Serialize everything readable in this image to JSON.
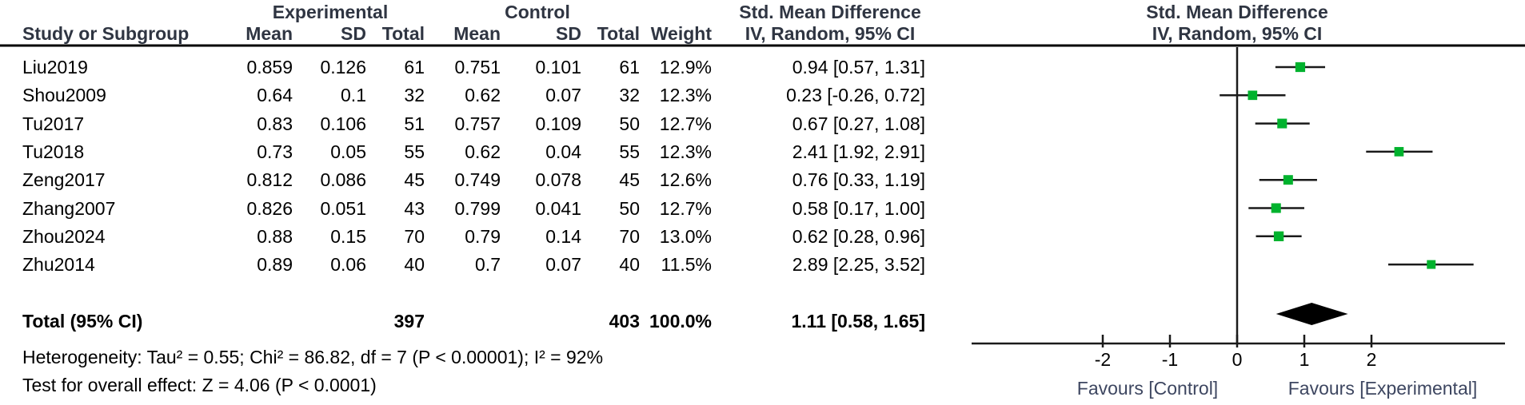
{
  "colors": {
    "marker_green": "#00b22d",
    "line_black": "#1a1a1a",
    "header_text": "#2f3542",
    "favours_text": "#3d4660",
    "background": "#ffffff"
  },
  "header": {
    "study": "Study or Subgroup",
    "group_experimental": "Experimental",
    "group_control": "Control",
    "mean": "Mean",
    "sd": "SD",
    "total": "Total",
    "weight": "Weight",
    "effect_title": "Std. Mean Difference",
    "effect_method": "IV, Random, 95% CI",
    "plot_title": "Std. Mean Difference",
    "plot_method": "IV, Random, 95% CI"
  },
  "chart_data": {
    "type": "forest",
    "effect_measure": "Std. Mean Difference",
    "model": "IV, Random, 95% CI",
    "studies": [
      {
        "name": "Liu2019",
        "exp_mean": "0.859",
        "exp_sd": "0.126",
        "exp_total": "61",
        "ctrl_mean": "0.751",
        "ctrl_sd": "0.101",
        "ctrl_total": "61",
        "weight": "12.9%",
        "weight_pct": 12.9,
        "smd": 0.94,
        "ci_low": 0.57,
        "ci_high": 1.31,
        "ci_label": "0.94 [0.57, 1.31]"
      },
      {
        "name": "Shou2009",
        "exp_mean": "0.64",
        "exp_sd": "0.1",
        "exp_total": "32",
        "ctrl_mean": "0.62",
        "ctrl_sd": "0.07",
        "ctrl_total": "32",
        "weight": "12.3%",
        "weight_pct": 12.3,
        "smd": 0.23,
        "ci_low": -0.26,
        "ci_high": 0.72,
        "ci_label": "0.23 [-0.26, 0.72]"
      },
      {
        "name": "Tu2017",
        "exp_mean": "0.83",
        "exp_sd": "0.106",
        "exp_total": "51",
        "ctrl_mean": "0.757",
        "ctrl_sd": "0.109",
        "ctrl_total": "50",
        "weight": "12.7%",
        "weight_pct": 12.7,
        "smd": 0.67,
        "ci_low": 0.27,
        "ci_high": 1.08,
        "ci_label": "0.67 [0.27, 1.08]"
      },
      {
        "name": "Tu2018",
        "exp_mean": "0.73",
        "exp_sd": "0.05",
        "exp_total": "55",
        "ctrl_mean": "0.62",
        "ctrl_sd": "0.04",
        "ctrl_total": "55",
        "weight": "12.3%",
        "weight_pct": 12.3,
        "smd": 2.41,
        "ci_low": 1.92,
        "ci_high": 2.91,
        "ci_label": "2.41 [1.92, 2.91]"
      },
      {
        "name": "Zeng2017",
        "exp_mean": "0.812",
        "exp_sd": "0.086",
        "exp_total": "45",
        "ctrl_mean": "0.749",
        "ctrl_sd": "0.078",
        "ctrl_total": "45",
        "weight": "12.6%",
        "weight_pct": 12.6,
        "smd": 0.76,
        "ci_low": 0.33,
        "ci_high": 1.19,
        "ci_label": "0.76 [0.33, 1.19]"
      },
      {
        "name": "Zhang2007",
        "exp_mean": "0.826",
        "exp_sd": "0.051",
        "exp_total": "43",
        "ctrl_mean": "0.799",
        "ctrl_sd": "0.041",
        "ctrl_total": "50",
        "weight": "12.7%",
        "weight_pct": 12.7,
        "smd": 0.58,
        "ci_low": 0.17,
        "ci_high": 1.0,
        "ci_label": "0.58 [0.17, 1.00]"
      },
      {
        "name": "Zhou2024",
        "exp_mean": "0.88",
        "exp_sd": "0.15",
        "exp_total": "70",
        "ctrl_mean": "0.79",
        "ctrl_sd": "0.14",
        "ctrl_total": "70",
        "weight": "13.0%",
        "weight_pct": 13.0,
        "smd": 0.62,
        "ci_low": 0.28,
        "ci_high": 0.96,
        "ci_label": "0.62 [0.28, 0.96]"
      },
      {
        "name": "Zhu2014",
        "exp_mean": "0.89",
        "exp_sd": "0.06",
        "exp_total": "40",
        "ctrl_mean": "0.7",
        "ctrl_sd": "0.07",
        "ctrl_total": "40",
        "weight": "11.5%",
        "weight_pct": 11.5,
        "smd": 2.89,
        "ci_low": 2.25,
        "ci_high": 3.52,
        "ci_label": "2.89 [2.25, 3.52]"
      }
    ],
    "total": {
      "label": "Total (95% CI)",
      "exp_total": "397",
      "ctrl_total": "403",
      "weight": "100.0%",
      "smd": 1.11,
      "ci_low": 0.58,
      "ci_high": 1.65,
      "ci_label": "1.11 [0.58, 1.65]"
    },
    "axis": {
      "ticks": [
        -2,
        -1,
        0,
        1,
        2
      ],
      "xmin": -3.95,
      "xmax": 3.99,
      "favours_left": "Favours [Control]",
      "favours_right": "Favours [Experimental]"
    },
    "heterogeneity": "Heterogeneity: Tau² = 0.55; Chi² = 86.82, df = 7 (P < 0.00001); I² = 92%",
    "overall_effect_test": "Test for overall effect: Z = 4.06 (P < 0.0001)"
  }
}
